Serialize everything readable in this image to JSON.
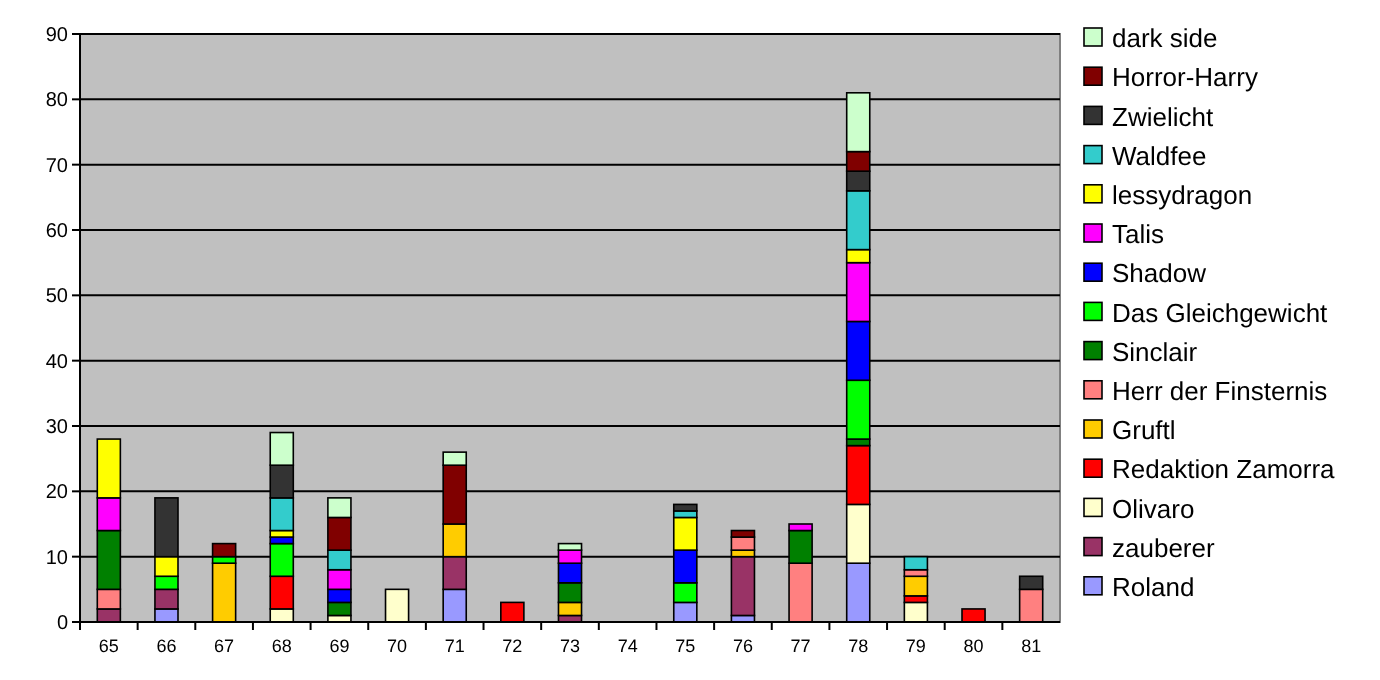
{
  "chart_data": {
    "type": "bar",
    "stacked": true,
    "categories": [
      "65",
      "66",
      "67",
      "68",
      "69",
      "70",
      "71",
      "72",
      "73",
      "74",
      "75",
      "76",
      "77",
      "78",
      "79",
      "80",
      "81"
    ],
    "ylim": [
      0,
      90
    ],
    "yticks": [
      0,
      10,
      20,
      30,
      40,
      50,
      60,
      70,
      80,
      90
    ],
    "grid": "y",
    "legend": "right",
    "series": [
      {
        "name": "Roland",
        "color": "#9999ff",
        "values": [
          0,
          2,
          0,
          0,
          0,
          0,
          5,
          0,
          0,
          0,
          3,
          1,
          0,
          9,
          0,
          0,
          0
        ]
      },
      {
        "name": "zauberer",
        "color": "#993366",
        "values": [
          2,
          3,
          0,
          0,
          0,
          0,
          5,
          0,
          1,
          0,
          0,
          9,
          0,
          0,
          0,
          0,
          0
        ]
      },
      {
        "name": "Olivaro",
        "color": "#ffffcc",
        "values": [
          0,
          0,
          0,
          2,
          1,
          5,
          0,
          0,
          0,
          0,
          0,
          0,
          0,
          9,
          3,
          0,
          0
        ]
      },
      {
        "name": "Redaktion Zamorra",
        "color": "#ff0000",
        "values": [
          0,
          0,
          0,
          5,
          0,
          0,
          0,
          3,
          0,
          0,
          0,
          0,
          0,
          9,
          1,
          2,
          0
        ]
      },
      {
        "name": "Gruftl",
        "color": "#ffcc00",
        "values": [
          0,
          0,
          9,
          0,
          0,
          0,
          5,
          0,
          2,
          0,
          0,
          1,
          0,
          0,
          3,
          0,
          0
        ]
      },
      {
        "name": "Herr der Finsternis",
        "color": "#ff8080",
        "values": [
          3,
          0,
          0,
          0,
          0,
          0,
          0,
          0,
          0,
          0,
          0,
          2,
          9,
          0,
          1,
          0,
          5
        ]
      },
      {
        "name": "Sinclair",
        "color": "#008000",
        "values": [
          9,
          0,
          0,
          0,
          2,
          0,
          0,
          0,
          3,
          0,
          0,
          0,
          5,
          1,
          0,
          0,
          0
        ]
      },
      {
        "name": "Das Gleichgewicht",
        "color": "#00ff00",
        "values": [
          0,
          2,
          1,
          5,
          0,
          0,
          0,
          0,
          0,
          0,
          3,
          0,
          0,
          9,
          0,
          0,
          0
        ]
      },
      {
        "name": "Shadow",
        "color": "#0000ff",
        "values": [
          0,
          0,
          0,
          1,
          2,
          0,
          0,
          0,
          3,
          0,
          5,
          0,
          0,
          9,
          0,
          0,
          0
        ]
      },
      {
        "name": "Talis",
        "color": "#ff00ff",
        "values": [
          5,
          0,
          0,
          0,
          3,
          0,
          0,
          0,
          2,
          0,
          0,
          0,
          1,
          9,
          0,
          0,
          0
        ]
      },
      {
        "name": "lessydragon",
        "color": "#ffff00",
        "values": [
          9,
          3,
          0,
          1,
          0,
          0,
          0,
          0,
          0,
          0,
          5,
          0,
          0,
          2,
          0,
          0,
          0
        ]
      },
      {
        "name": "Waldfee",
        "color": "#33cccc",
        "values": [
          0,
          0,
          0,
          5,
          3,
          0,
          0,
          0,
          0,
          0,
          1,
          0,
          0,
          9,
          2,
          0,
          0
        ]
      },
      {
        "name": "Zwielicht",
        "color": "#333333",
        "values": [
          0,
          9,
          0,
          5,
          0,
          0,
          0,
          0,
          0,
          0,
          1,
          0,
          0,
          3,
          0,
          0,
          2
        ]
      },
      {
        "name": "Horror-Harry",
        "color": "#800000",
        "values": [
          0,
          0,
          2,
          0,
          5,
          0,
          9,
          0,
          0,
          0,
          0,
          1,
          0,
          3,
          0,
          0,
          0
        ]
      },
      {
        "name": "dark side",
        "color": "#ccffcc",
        "values": [
          0,
          0,
          0,
          5,
          3,
          0,
          2,
          0,
          1,
          0,
          0,
          0,
          0,
          9,
          0,
          0,
          0
        ]
      }
    ]
  }
}
